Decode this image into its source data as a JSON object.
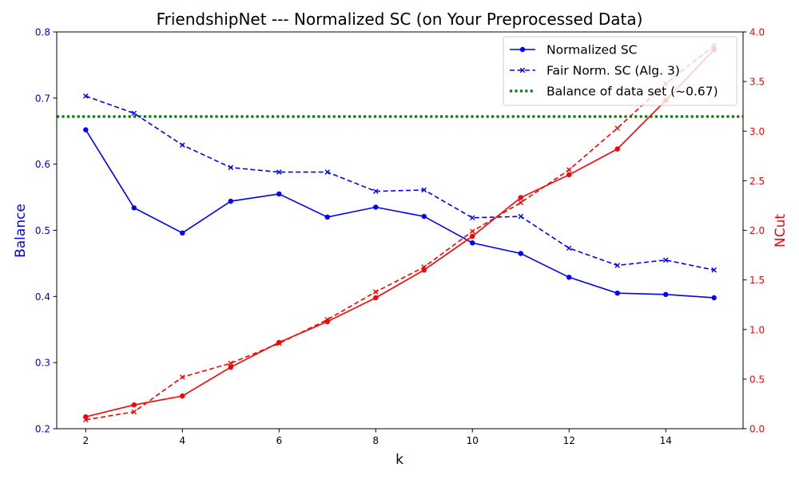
{
  "chart_data": {
    "type": "line",
    "title": "FriendshipNet --- Normalized SC (on Your Preprocessed Data)",
    "xlabel": "k",
    "ylabel_left": "Balance",
    "ylabel_right": "NCut",
    "xlim": [
      1.4,
      15.6
    ],
    "ylim_left": [
      0.2,
      0.8
    ],
    "ylim_right": [
      0.0,
      4.0
    ],
    "x_ticks": [
      2,
      4,
      6,
      8,
      10,
      12,
      14
    ],
    "y_left_ticks": [
      0.2,
      0.3,
      0.4,
      0.5,
      0.6,
      0.7,
      0.8
    ],
    "y_left_tick_labels": [
      "0.2",
      "0.3",
      "0.4",
      "0.5",
      "0.6",
      "0.7",
      "0.8"
    ],
    "y_right_ticks": [
      0.0,
      0.5,
      1.0,
      1.5,
      2.0,
      2.5,
      3.0,
      3.5,
      4.0
    ],
    "y_right_tick_labels": [
      "0.0",
      "0.5",
      "1.0",
      "1.5",
      "2.0",
      "2.5",
      "3.0",
      "3.5",
      "4.0"
    ],
    "grid": false,
    "legend_position": "top-right",
    "x": [
      2,
      3,
      4,
      5,
      6,
      7,
      8,
      9,
      10,
      11,
      12,
      13,
      14,
      15
    ],
    "series": [
      {
        "name": "Normalized SC",
        "axis": "left",
        "color": "#0000ff",
        "line_style": "solid",
        "marker": "circle",
        "in_legend": true,
        "values": [
          0.652,
          0.534,
          0.496,
          0.544,
          0.555,
          0.52,
          0.535,
          0.521,
          0.481,
          0.465,
          0.429,
          0.405,
          0.403,
          0.398
        ]
      },
      {
        "name": "Fair Norm. SC (Alg. 3)",
        "axis": "left",
        "color": "#0000ff",
        "line_style": "dashed",
        "marker": "x",
        "in_legend": true,
        "values": [
          0.703,
          0.677,
          0.629,
          0.595,
          0.588,
          0.588,
          0.559,
          0.561,
          0.519,
          0.521,
          0.473,
          0.447,
          0.455,
          0.44
        ]
      },
      {
        "name": "",
        "axis": "right",
        "color": "#ff0000",
        "line_style": "solid",
        "marker": "circle",
        "in_legend": false,
        "values": [
          0.12,
          0.24,
          0.33,
          0.62,
          0.87,
          1.08,
          1.32,
          1.6,
          1.94,
          2.33,
          2.56,
          2.82,
          3.31,
          3.82
        ]
      },
      {
        "name": "",
        "axis": "right",
        "color": "#ff0000",
        "line_style": "dashed",
        "marker": "x",
        "in_legend": false,
        "values": [
          0.09,
          0.17,
          0.52,
          0.66,
          0.86,
          1.1,
          1.38,
          1.63,
          1.99,
          2.28,
          2.61,
          3.03,
          3.48,
          3.86
        ]
      }
    ],
    "reference_lines": [
      {
        "name": "Balance of data set (~0.67)",
        "axis": "left",
        "orientation": "horizontal",
        "value": 0.672,
        "color": "#008000",
        "line_style": "dotted"
      }
    ],
    "colors": {
      "left_axis": "#0000ff",
      "right_axis": "#ff0000",
      "reference": "#008000"
    }
  }
}
